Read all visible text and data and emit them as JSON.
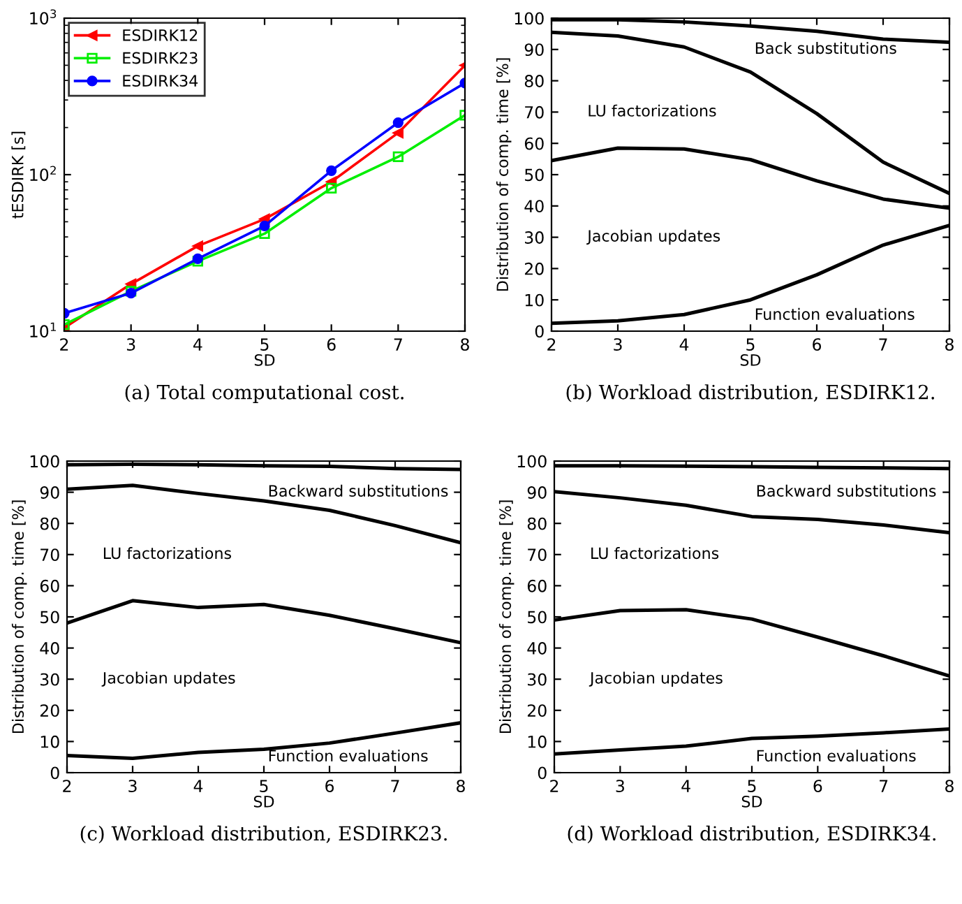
{
  "chart_data": [
    {
      "type": "line",
      "title": "(a) Total computational cost.",
      "xlabel": "SD",
      "ylabel": "tESDIRK [s]",
      "x": [
        2,
        3,
        4,
        5,
        6,
        7,
        8
      ],
      "log": "y",
      "xlim": [
        2,
        8
      ],
      "xticks": [
        2,
        3,
        4,
        5,
        6,
        7,
        8
      ],
      "ylim": [
        10,
        1000
      ],
      "yticks": [
        {
          "value": 10,
          "label": "10$^{1}$"
        },
        {
          "value": 100,
          "label": "10$^{2}$"
        },
        {
          "value": 1000,
          "label": "10$^{3}$"
        }
      ],
      "legend": "top left",
      "grid": false,
      "series": [
        {
          "name": "ESDIRK12",
          "color": "#ff0000",
          "marker": "triangle",
          "values": [
            10.5,
            20,
            35,
            52,
            90,
            185,
            500
          ]
        },
        {
          "name": "ESDIRK23",
          "color": "#00ee00",
          "marker": "square",
          "values": [
            11,
            18,
            28,
            42,
            82,
            130,
            240
          ]
        },
        {
          "name": "ESDIRK34",
          "color": "#0000ff",
          "marker": "circle",
          "values": [
            13,
            17.5,
            29,
            47,
            106,
            215,
            385
          ]
        }
      ]
    },
    {
      "type": "line",
      "title": "(b) Workload distribution, ESDIRK12.",
      "xlabel": "SD",
      "ylabel": "Distribution of comp. time [%]",
      "x": [
        2,
        3,
        4,
        5,
        6,
        7,
        8
      ],
      "xlim": [
        2,
        8
      ],
      "xticks": [
        2,
        3,
        4,
        5,
        6,
        7,
        8
      ],
      "ylim": [
        0,
        100
      ],
      "yticks": [
        0,
        10,
        20,
        30,
        40,
        50,
        60,
        70,
        80,
        90,
        100
      ],
      "grid": false,
      "series": [
        {
          "color": "#000000",
          "values": [
            99.5,
            99.5,
            98.8,
            97.5,
            95.8,
            93.3,
            92.3
          ]
        },
        {
          "color": "#000000",
          "values": [
            95.5,
            94.3,
            90.8,
            82.8,
            69.5,
            54,
            44
          ]
        },
        {
          "color": "#000000",
          "values": [
            54.5,
            58.5,
            58.2,
            54.8,
            48,
            42.2,
            39.3
          ]
        },
        {
          "color": "#000000",
          "values": [
            2.5,
            3.3,
            5.3,
            10,
            18,
            27.5,
            33.8
          ]
        }
      ],
      "annotations": [
        "Back substitutions",
        "LU factorizations",
        "Jacobian updates",
        "Function evaluations"
      ]
    },
    {
      "type": "line",
      "title": "(c) Workload distribution, ESDIRK23.",
      "xlabel": "SD",
      "ylabel": "Distribution of comp. time [%]",
      "x": [
        2,
        3,
        4,
        5,
        6,
        7,
        8
      ],
      "xlim": [
        2,
        8
      ],
      "xticks": [
        2,
        3,
        4,
        5,
        6,
        7,
        8
      ],
      "ylim": [
        0,
        100
      ],
      "yticks": [
        0,
        10,
        20,
        30,
        40,
        50,
        60,
        70,
        80,
        90,
        100
      ],
      "grid": false,
      "series": [
        {
          "color": "#000000",
          "values": [
            98.8,
            99,
            98.8,
            98.5,
            98.3,
            97.6,
            97.3
          ]
        },
        {
          "color": "#000000",
          "values": [
            91,
            92.2,
            89.6,
            87.2,
            84.2,
            79.3,
            73.8
          ]
        },
        {
          "color": "#000000",
          "values": [
            48,
            55.2,
            53,
            54,
            50.5,
            46.2,
            41.7
          ]
        },
        {
          "color": "#000000",
          "values": [
            5.5,
            4.6,
            6.5,
            7.5,
            9.5,
            12.7,
            16
          ]
        }
      ],
      "annotations": [
        "Backward substitutions",
        "LU factorizations",
        "Jacobian updates",
        "Function evaluations"
      ]
    },
    {
      "type": "line",
      "title": "(d) Workload distribution, ESDIRK34.",
      "xlabel": "SD",
      "ylabel": "Distribution of comp. time [%]",
      "x": [
        2,
        3,
        4,
        5,
        6,
        7,
        8
      ],
      "xlim": [
        2,
        8
      ],
      "xticks": [
        2,
        3,
        4,
        5,
        6,
        7,
        8
      ],
      "ylim": [
        0,
        100
      ],
      "yticks": [
        0,
        10,
        20,
        30,
        40,
        50,
        60,
        70,
        80,
        90,
        100
      ],
      "grid": false,
      "series": [
        {
          "color": "#000000",
          "values": [
            98.5,
            98.5,
            98.4,
            98.2,
            98,
            97.8,
            97.6
          ]
        },
        {
          "color": "#000000",
          "values": [
            90.2,
            88.2,
            85.8,
            82.2,
            81.3,
            79.5,
            77
          ]
        },
        {
          "color": "#000000",
          "values": [
            49,
            52,
            52.3,
            49.3,
            43.5,
            37.5,
            31
          ]
        },
        {
          "color": "#000000",
          "values": [
            6,
            7.3,
            8.5,
            11,
            11.7,
            12.8,
            14
          ]
        }
      ],
      "annotations": [
        "Backward substitutions",
        "LU factorizations",
        "Jacobian updates",
        "Function evaluations"
      ]
    }
  ]
}
